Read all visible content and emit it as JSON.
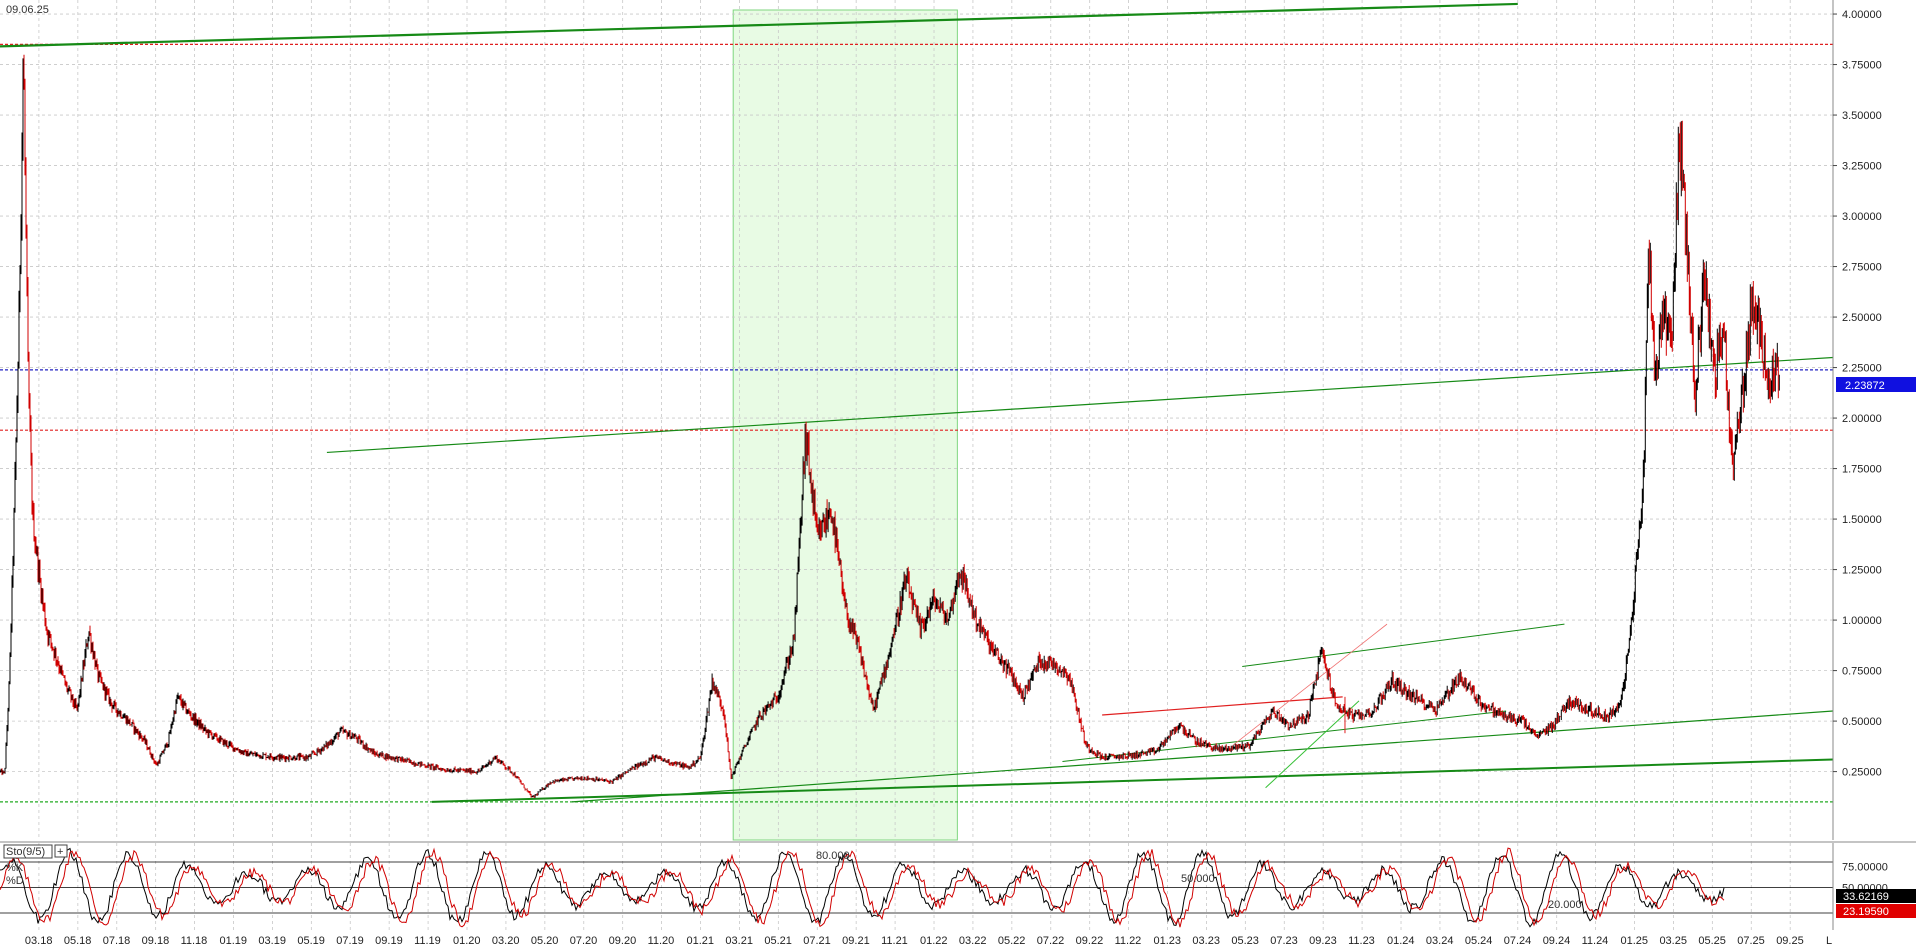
{
  "date_label": "09.06.25",
  "ind_label": "Sto(9/5)",
  "ind_k_label": "%K",
  "ind_d_label": "%D",
  "last_price_badge": "2.23872",
  "k_badge": "33.62169",
  "d_badge": "23.19590",
  "ind_levels_text": [
    "80.000",
    "50.000",
    "20.000"
  ],
  "colors": {
    "grid": "#c8c8c8",
    "price_up": "#000000",
    "price_down": "#d00000",
    "trend_green": "#168a16",
    "trend_red": "#e02020",
    "highlight": "#e8fbe4",
    "blue_level": "#2020c0",
    "badge_blue": "#1010e0",
    "badge_black": "#000000",
    "badge_red": "#e00000"
  },
  "chart_data": [
    {
      "type": "line",
      "y_ticks": [
        "4.00000",
        "3.75000",
        "3.50000",
        "3.25000",
        "3.00000",
        "2.75000",
        "2.50000",
        "2.25000",
        "2.00000",
        "1.75000",
        "1.50000",
        "1.25000",
        "1.00000",
        "0.75000",
        "0.50000",
        "0.25000"
      ],
      "ylim": [
        0.05,
        4.02
      ],
      "x_ticks": [
        "03.18",
        "05.18",
        "07.18",
        "09.18",
        "11.18",
        "01.19",
        "03.19",
        "05.19",
        "07.19",
        "09.19",
        "11.19",
        "01.20",
        "03.20",
        "05.20",
        "07.20",
        "09.20",
        "11.20",
        "01.21",
        "03.21",
        "05.21",
        "07.21",
        "09.21",
        "11.21",
        "01.22",
        "03.22",
        "05.22",
        "07.22",
        "09.22",
        "11.22",
        "01.23",
        "03.23",
        "05.23",
        "07.23",
        "09.23",
        "11.23",
        "01.24",
        "03.24",
        "05.24",
        "07.24",
        "09.24",
        "11.24",
        "01.25",
        "03.25",
        "05.25",
        "07.25",
        "09.25"
      ],
      "xlim": [
        2018.0,
        2025.85
      ],
      "price_anchors": [
        [
          2018.0,
          0.25
        ],
        [
          2018.02,
          0.24
        ],
        [
          2018.04,
          0.7
        ],
        [
          2018.06,
          1.5
        ],
        [
          2018.08,
          2.4
        ],
        [
          2018.1,
          3.82
        ],
        [
          2018.12,
          2.2
        ],
        [
          2018.14,
          1.5
        ],
        [
          2018.17,
          1.2
        ],
        [
          2018.2,
          0.95
        ],
        [
          2018.24,
          0.82
        ],
        [
          2018.28,
          0.68
        ],
        [
          2018.33,
          0.55
        ],
        [
          2018.38,
          0.95
        ],
        [
          2018.42,
          0.72
        ],
        [
          2018.48,
          0.58
        ],
        [
          2018.55,
          0.5
        ],
        [
          2018.62,
          0.4
        ],
        [
          2018.67,
          0.28
        ],
        [
          2018.72,
          0.4
        ],
        [
          2018.76,
          0.62
        ],
        [
          2018.8,
          0.55
        ],
        [
          2018.88,
          0.45
        ],
        [
          2018.95,
          0.4
        ],
        [
          2019.05,
          0.34
        ],
        [
          2019.2,
          0.32
        ],
        [
          2019.32,
          0.32
        ],
        [
          2019.4,
          0.38
        ],
        [
          2019.46,
          0.45
        ],
        [
          2019.52,
          0.42
        ],
        [
          2019.6,
          0.34
        ],
        [
          2019.75,
          0.3
        ],
        [
          2019.9,
          0.26
        ],
        [
          2020.05,
          0.25
        ],
        [
          2020.12,
          0.32
        ],
        [
          2020.2,
          0.24
        ],
        [
          2020.28,
          0.12
        ],
        [
          2020.36,
          0.2
        ],
        [
          2020.5,
          0.22
        ],
        [
          2020.62,
          0.2
        ],
        [
          2020.7,
          0.26
        ],
        [
          2020.8,
          0.32
        ],
        [
          2020.95,
          0.27
        ],
        [
          2021.0,
          0.32
        ],
        [
          2021.05,
          0.7
        ],
        [
          2021.1,
          0.55
        ],
        [
          2021.13,
          0.22
        ],
        [
          2021.18,
          0.35
        ],
        [
          2021.25,
          0.52
        ],
        [
          2021.33,
          0.62
        ],
        [
          2021.4,
          0.9
        ],
        [
          2021.45,
          1.92
        ],
        [
          2021.5,
          1.4
        ],
        [
          2021.56,
          1.55
        ],
        [
          2021.62,
          1.05
        ],
        [
          2021.68,
          0.85
        ],
        [
          2021.74,
          0.55
        ],
        [
          2021.8,
          0.8
        ],
        [
          2021.88,
          1.2
        ],
        [
          2021.94,
          0.95
        ],
        [
          2022.0,
          1.1
        ],
        [
          2022.06,
          1.0
        ],
        [
          2022.11,
          1.25
        ],
        [
          2022.18,
          1.0
        ],
        [
          2022.25,
          0.85
        ],
        [
          2022.32,
          0.75
        ],
        [
          2022.38,
          0.62
        ],
        [
          2022.45,
          0.8
        ],
        [
          2022.52,
          0.78
        ],
        [
          2022.58,
          0.72
        ],
        [
          2022.65,
          0.38
        ],
        [
          2022.72,
          0.32
        ],
        [
          2022.85,
          0.33
        ],
        [
          2022.95,
          0.35
        ],
        [
          2023.05,
          0.48
        ],
        [
          2023.12,
          0.4
        ],
        [
          2023.22,
          0.36
        ],
        [
          2023.35,
          0.38
        ],
        [
          2023.45,
          0.55
        ],
        [
          2023.52,
          0.48
        ],
        [
          2023.6,
          0.52
        ],
        [
          2023.66,
          0.85
        ],
        [
          2023.72,
          0.58
        ],
        [
          2023.8,
          0.52
        ],
        [
          2023.88,
          0.55
        ],
        [
          2023.96,
          0.7
        ],
        [
          2024.05,
          0.62
        ],
        [
          2024.15,
          0.56
        ],
        [
          2024.25,
          0.72
        ],
        [
          2024.35,
          0.58
        ],
        [
          2024.45,
          0.52
        ],
        [
          2024.52,
          0.5
        ],
        [
          2024.58,
          0.42
        ],
        [
          2024.65,
          0.48
        ],
        [
          2024.72,
          0.6
        ],
        [
          2024.8,
          0.56
        ],
        [
          2024.88,
          0.52
        ],
        [
          2024.94,
          0.58
        ],
        [
          2024.98,
          0.9
        ],
        [
          2025.01,
          1.3
        ],
        [
          2025.04,
          1.75
        ],
        [
          2025.06,
          2.9
        ],
        [
          2025.09,
          2.2
        ],
        [
          2025.12,
          2.55
        ],
        [
          2025.16,
          2.4
        ],
        [
          2025.19,
          3.38
        ],
        [
          2025.22,
          2.95
        ],
        [
          2025.26,
          2.1
        ],
        [
          2025.3,
          2.75
        ],
        [
          2025.34,
          2.2
        ],
        [
          2025.38,
          2.45
        ],
        [
          2025.42,
          1.75
        ],
        [
          2025.46,
          2.1
        ],
        [
          2025.5,
          2.55
        ],
        [
          2025.54,
          2.4
        ],
        [
          2025.58,
          2.2
        ],
        [
          2025.62,
          2.24
        ]
      ],
      "horizontal_levels": [
        {
          "value": 3.85,
          "color": "#e02020",
          "dash": true
        },
        {
          "value": 2.23872,
          "color": "#2020c0",
          "dash": true
        },
        {
          "value": 1.94,
          "color": "#e02020",
          "dash": true
        },
        {
          "value": 0.1,
          "color": "#22aa22",
          "dash": true
        }
      ],
      "trendlines": [
        {
          "x1": 2018.0,
          "y1": 3.84,
          "x2": 2024.5,
          "y2": 4.05,
          "color": "#168a16",
          "width": 2.2
        },
        {
          "x1": 2019.4,
          "y1": 1.83,
          "x2": 2025.85,
          "y2": 2.3,
          "color": "#168a16",
          "width": 1.2
        },
        {
          "x1": 2019.85,
          "y1": 0.1,
          "x2": 2025.85,
          "y2": 0.31,
          "color": "#168a16",
          "width": 2.0
        },
        {
          "x1": 2020.45,
          "y1": 0.1,
          "x2": 2025.85,
          "y2": 0.55,
          "color": "#168a16",
          "width": 1.2
        },
        {
          "x1": 2023.32,
          "y1": 0.77,
          "x2": 2024.7,
          "y2": 0.98,
          "color": "#168a16",
          "width": 1.0
        },
        {
          "x1": 2022.55,
          "y1": 0.3,
          "x2": 2024.45,
          "y2": 0.55,
          "color": "#168a16",
          "width": 1.0
        },
        {
          "x1": 2023.42,
          "y1": 0.17,
          "x2": 2023.82,
          "y2": 0.6,
          "color": "#36c036",
          "width": 1.0
        },
        {
          "x1": 2022.72,
          "y1": 0.53,
          "x2": 2023.75,
          "y2": 0.62,
          "color": "#e02020",
          "width": 1.2
        },
        {
          "x1": 2023.28,
          "y1": 0.38,
          "x2": 2023.94,
          "y2": 0.98,
          "color": "#f07070",
          "width": 0.8
        },
        {
          "x1": 2023.76,
          "y1": 0.62,
          "x2": 2023.76,
          "y2": 0.44,
          "color": "#e02020",
          "width": 1.0
        }
      ],
      "highlight_range": [
        2021.14,
        2022.1
      ]
    },
    {
      "type": "line",
      "ylim": [
        0,
        100
      ],
      "y_ticks": [
        "75.00000",
        "50.00000"
      ],
      "levels": [
        80,
        50,
        20
      ],
      "xlim": [
        2018.0,
        2025.85
      ],
      "series": [
        {
          "name": "%K",
          "color": "#d00000"
        },
        {
          "name": "%D",
          "color": "#000000"
        }
      ],
      "last_values": {
        "k": 33.62169,
        "d": 23.1959
      }
    }
  ]
}
